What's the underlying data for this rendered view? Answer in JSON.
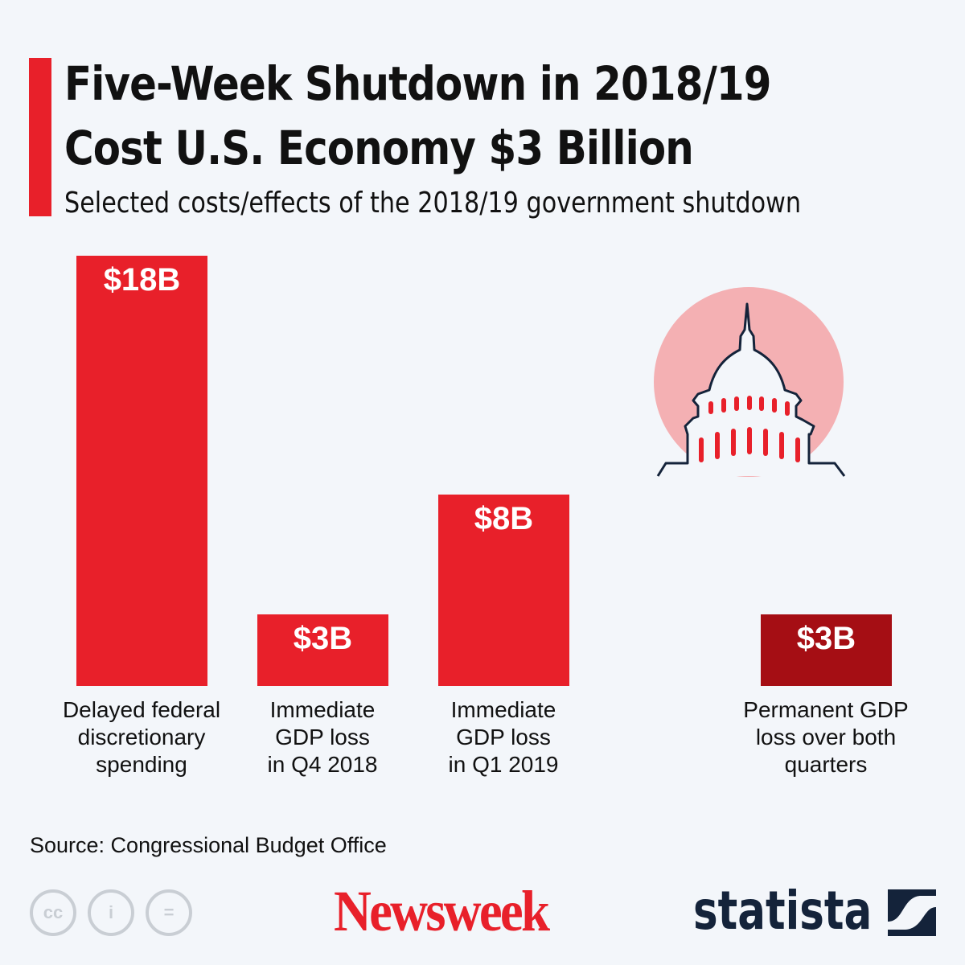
{
  "chart_data": {
    "type": "bar",
    "title": "Five-Week Shutdown in 2018/19 Cost U.S. Economy $3 Billion",
    "title_lines": [
      "Five-Week Shutdown in 2018/19",
      "Cost U.S. Economy $3 Billion"
    ],
    "subtitle": "Selected costs/effects of the 2018/19 government shutdown",
    "categories": [
      [
        "Delayed federal",
        "discretionary",
        "spending"
      ],
      [
        "Immediate",
        "GDP loss",
        "in Q4 2018"
      ],
      [
        "Immediate",
        "GDP loss",
        "in Q1 2019"
      ],
      [
        "Permanent GDP",
        "loss over both",
        "quarters"
      ]
    ],
    "values": [
      18,
      3,
      8,
      3
    ],
    "unit": "billion USD",
    "data_labels": [
      "$18B",
      "$3B",
      "$8B",
      "$3B"
    ],
    "bar_colors": [
      "#e8202a",
      "#e8202a",
      "#e8202a",
      "#a50e14"
    ],
    "grid": false,
    "axes_visible": false
  },
  "source": "Source: Congressional Budget Office",
  "icon": "capitol-dome-icon",
  "license_icons": [
    "cc",
    "i",
    "="
  ],
  "logos": {
    "newsweek": "Newsweek",
    "statista": "statista"
  },
  "colors": {
    "accent": "#e8202a",
    "dark_bar": "#a50e14",
    "circle": "#f4b0b3",
    "navy": "#14233a"
  }
}
